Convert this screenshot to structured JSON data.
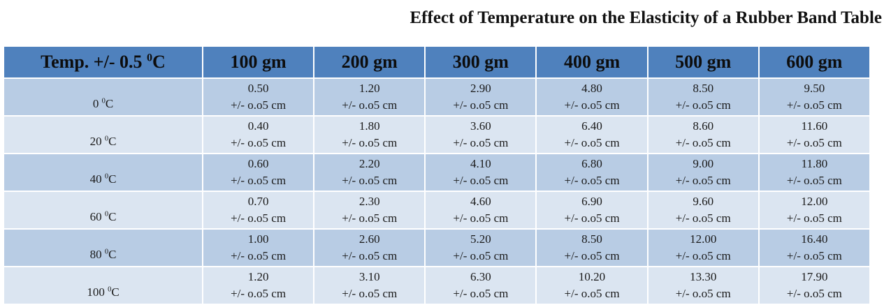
{
  "chart_data": {
    "type": "table",
    "title": "Effect of Temperature on the Elasticity of a Rubber Band Table",
    "header": {
      "temp_label": "Temp.  +/- 0.5",
      "temp_unit_sup": "0",
      "temp_unit": "C",
      "columns": [
        "100 gm",
        "200 gm",
        "300 gm",
        "400 gm",
        "500 gm",
        "600 gm"
      ]
    },
    "uncertainty": "+/- o.o5 cm",
    "rows": [
      {
        "temp": "0",
        "sup": "0",
        "unit": "C",
        "values": [
          "0.50",
          "1.20",
          "2.90",
          "4.80",
          "8.50",
          "9.50"
        ]
      },
      {
        "temp": "20",
        "sup": "0",
        "unit": "C",
        "values": [
          "0.40",
          "1.80",
          "3.60",
          "6.40",
          "8.60",
          "11.60"
        ]
      },
      {
        "temp": "40",
        "sup": "0",
        "unit": "C",
        "values": [
          "0.60",
          "2.20",
          "4.10",
          "6.80",
          "9.00",
          "11.80"
        ]
      },
      {
        "temp": "60",
        "sup": "0",
        "unit": "C",
        "values": [
          "0.70",
          "2.30",
          "4.60",
          "6.90",
          "9.60",
          "12.00"
        ]
      },
      {
        "temp": "80",
        "sup": "0",
        "unit": "C",
        "values": [
          "1.00",
          "2.60",
          "5.20",
          "8.50",
          "12.00",
          "16.40"
        ]
      },
      {
        "temp": "100",
        "sup": "0",
        "unit": "C",
        "values": [
          "1.20",
          "3.10",
          "6.30",
          "10.20",
          "13.30",
          "17.90"
        ]
      }
    ],
    "colors": {
      "header": "#4f81bd",
      "row_dark": "#b8cce4",
      "row_light": "#dbe5f1"
    }
  }
}
